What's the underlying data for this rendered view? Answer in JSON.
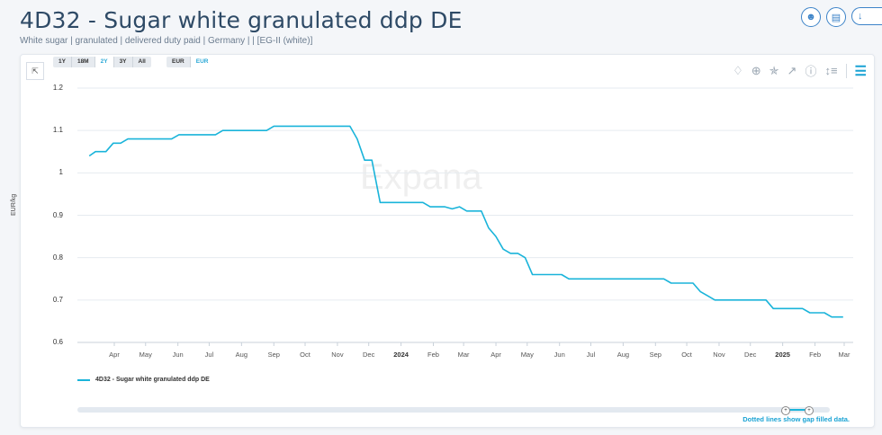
{
  "header": {
    "title": "4D32 - Sugar white granulated ddp DE",
    "subtitle": "White sugar | granulated | delivered duty paid | Germany | | [EG-II (white)]",
    "icons": [
      "user-icon",
      "document-icon",
      "download-icon"
    ]
  },
  "controls": {
    "ranges": [
      "1Y",
      "18M",
      "2Y",
      "3Y",
      "All"
    ],
    "active_range": "2Y",
    "currencies": [
      "EUR",
      "EUR"
    ],
    "active_currency_index": 1,
    "tools": [
      "bell-icon",
      "plus-circle-icon",
      "pin-icon",
      "external-link-icon",
      "info-icon",
      "sort-icon",
      "sliders-icon"
    ]
  },
  "watermark": "Expana",
  "legend": {
    "label": "4D32 - Sugar white granulated ddp DE",
    "color": "#1ab4da"
  },
  "footer_note": "Dotted lines show gap filled data.",
  "chart_data": {
    "type": "line",
    "title": "4D32 - Sugar white granulated ddp DE",
    "ylabel": "EUR/kg",
    "xlabel": "",
    "ylim": [
      0.6,
      1.2
    ],
    "yticks": [
      "0.6",
      "0.7",
      "0.8",
      "0.9",
      "1",
      "1.1",
      "1.2"
    ],
    "xticks": [
      {
        "label": "Apr",
        "date": "2023-04-01",
        "bold": false
      },
      {
        "label": "May",
        "date": "2023-05-01",
        "bold": false
      },
      {
        "label": "Jun",
        "date": "2023-06-01",
        "bold": false
      },
      {
        "label": "Jul",
        "date": "2023-07-01",
        "bold": false
      },
      {
        "label": "Aug",
        "date": "2023-08-01",
        "bold": false
      },
      {
        "label": "Sep",
        "date": "2023-09-01",
        "bold": false
      },
      {
        "label": "Oct",
        "date": "2023-10-01",
        "bold": false
      },
      {
        "label": "Nov",
        "date": "2023-11-01",
        "bold": false
      },
      {
        "label": "Dec",
        "date": "2023-12-01",
        "bold": false
      },
      {
        "label": "2024",
        "date": "2024-01-01",
        "bold": true
      },
      {
        "label": "Feb",
        "date": "2024-02-01",
        "bold": false
      },
      {
        "label": "Mar",
        "date": "2024-03-01",
        "bold": false
      },
      {
        "label": "Apr",
        "date": "2024-04-01",
        "bold": false
      },
      {
        "label": "May",
        "date": "2024-05-01",
        "bold": false
      },
      {
        "label": "Jun",
        "date": "2024-06-01",
        "bold": false
      },
      {
        "label": "Jul",
        "date": "2024-07-01",
        "bold": false
      },
      {
        "label": "Aug",
        "date": "2024-08-01",
        "bold": false
      },
      {
        "label": "Sep",
        "date": "2024-09-01",
        "bold": false
      },
      {
        "label": "Oct",
        "date": "2024-10-01",
        "bold": false
      },
      {
        "label": "Nov",
        "date": "2024-11-01",
        "bold": false
      },
      {
        "label": "Dec",
        "date": "2024-12-01",
        "bold": false
      },
      {
        "label": "2025",
        "date": "2025-01-01",
        "bold": true
      },
      {
        "label": "Feb",
        "date": "2025-02-01",
        "bold": false
      },
      {
        "label": "Mar",
        "date": "2025-03-01",
        "bold": false
      }
    ],
    "grid": true,
    "legend_position": "bottom-left",
    "series": [
      {
        "name": "4D32 - Sugar white granulated ddp DE",
        "color": "#1ab4da",
        "points": [
          [
            "2023-03-08",
            1.04
          ],
          [
            "2023-03-14",
            1.05
          ],
          [
            "2023-03-24",
            1.05
          ],
          [
            "2023-03-31",
            1.07
          ],
          [
            "2023-04-07",
            1.07
          ],
          [
            "2023-04-14",
            1.08
          ],
          [
            "2023-05-26",
            1.08
          ],
          [
            "2023-06-02",
            1.09
          ],
          [
            "2023-07-07",
            1.09
          ],
          [
            "2023-07-14",
            1.1
          ],
          [
            "2023-08-25",
            1.1
          ],
          [
            "2023-09-01",
            1.11
          ],
          [
            "2023-11-13",
            1.11
          ],
          [
            "2023-11-20",
            1.08
          ],
          [
            "2023-11-27",
            1.03
          ],
          [
            "2023-12-04",
            1.03
          ],
          [
            "2023-12-12",
            0.93
          ],
          [
            "2024-01-22",
            0.93
          ],
          [
            "2024-01-29",
            0.92
          ],
          [
            "2024-02-12",
            0.92
          ],
          [
            "2024-02-19",
            0.915
          ],
          [
            "2024-02-26",
            0.92
          ],
          [
            "2024-03-04",
            0.91
          ],
          [
            "2024-03-18",
            0.91
          ],
          [
            "2024-03-25",
            0.87
          ],
          [
            "2024-04-01",
            0.85
          ],
          [
            "2024-04-08",
            0.82
          ],
          [
            "2024-04-15",
            0.81
          ],
          [
            "2024-04-22",
            0.81
          ],
          [
            "2024-04-29",
            0.8
          ],
          [
            "2024-05-06",
            0.76
          ],
          [
            "2024-06-03",
            0.76
          ],
          [
            "2024-06-10",
            0.75
          ],
          [
            "2024-09-09",
            0.75
          ],
          [
            "2024-09-16",
            0.74
          ],
          [
            "2024-10-07",
            0.74
          ],
          [
            "2024-10-14",
            0.72
          ],
          [
            "2024-10-21",
            0.71
          ],
          [
            "2024-10-28",
            0.7
          ],
          [
            "2024-12-16",
            0.7
          ],
          [
            "2024-12-23",
            0.68
          ],
          [
            "2025-01-20",
            0.68
          ],
          [
            "2025-01-27",
            0.67
          ],
          [
            "2025-02-10",
            0.67
          ],
          [
            "2025-02-17",
            0.66
          ],
          [
            "2025-02-28",
            0.66
          ]
        ]
      }
    ]
  }
}
